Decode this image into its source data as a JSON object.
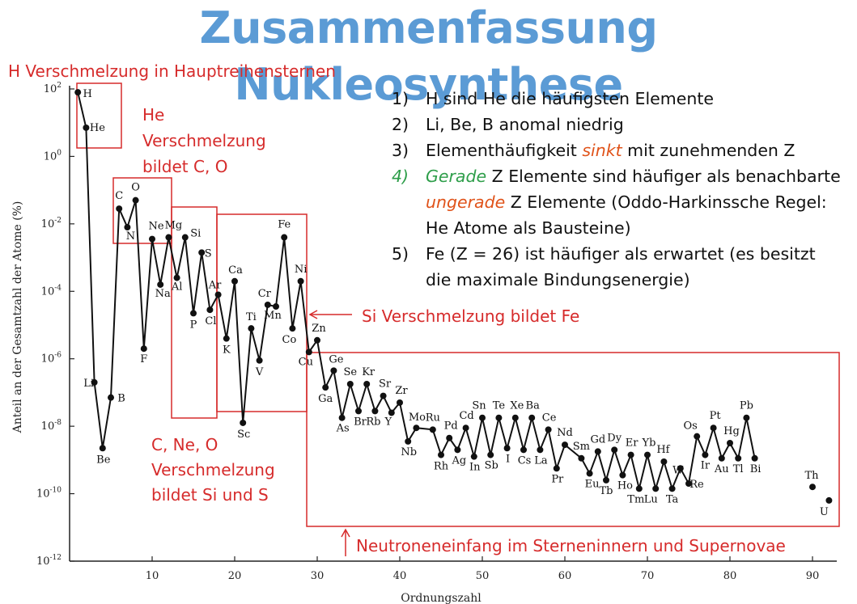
{
  "slide": {
    "title": "Zusammenfassung Nukleosynthese"
  },
  "notes": [
    {
      "num": "1)",
      "parts": [
        {
          "text": "H sind He die häufigsten Elemente"
        }
      ]
    },
    {
      "num": "2)",
      "parts": [
        {
          "text": "Li, Be, B anomal niedrig"
        }
      ]
    },
    {
      "num": "3)",
      "parts": [
        {
          "text": "Elementhäufigkeit "
        },
        {
          "text": "sinkt",
          "style": "orange"
        },
        {
          "text": " mit zunehmenden Z"
        }
      ]
    },
    {
      "num": "4)",
      "num_style": "green",
      "parts": [
        {
          "text": "Gerade",
          "style": "green"
        },
        {
          "text": " Z Elemente sind häufiger als benachbarte "
        },
        {
          "text": "ungerade",
          "style": "orange"
        },
        {
          "text": " Z Elemente (Oddo-Harkinssche Regel: He Atome als Bausteine)"
        }
      ]
    },
    {
      "num": "5)",
      "parts": [
        {
          "text": "Fe (Z = 26) ist häufiger als erwartet (es besitzt die maximale Bindungsenergie)"
        }
      ]
    }
  ],
  "annotations": {
    "h_fusion": "H Verschmelzung in Hauptreihensternen",
    "he_fusion": [
      "He",
      "Verschmelzung",
      "bildet C, O"
    ],
    "cneo_fusion": [
      "C, Ne, O",
      "Verschmelzung",
      "bildet Si und S"
    ],
    "si_fusion": "Si Verschmelzung bildet Fe",
    "neutron_capture": "Neutroneneinfang im Sterneninnern und Supernovae"
  },
  "colors": {
    "title": "#5b9bd5",
    "annotation": "#d62b2b",
    "highlight_green": "#2e9e4a",
    "highlight_orange": "#e0531a",
    "data": "#111111"
  },
  "chart_data": {
    "type": "line",
    "xlabel": "Ordnungszahl",
    "ylabel": "Anteil an der Gesamtzahl der Atome (%)",
    "xlim": [
      0,
      93
    ],
    "ylim_log10": [
      -12,
      2
    ],
    "y_scale": "log",
    "xticks": [
      10,
      20,
      30,
      40,
      50,
      60,
      70,
      80,
      90
    ],
    "yticks": [
      {
        "mant": "10",
        "exp": "2"
      },
      {
        "mant": "10",
        "exp": "0"
      },
      {
        "mant": "10",
        "exp": "-2"
      },
      {
        "mant": "10",
        "exp": "-4"
      },
      {
        "mant": "10",
        "exp": "-6"
      },
      {
        "mant": "10",
        "exp": "-8"
      },
      {
        "mant": "10",
        "exp": "-10"
      },
      {
        "mant": "10",
        "exp": "-12"
      }
    ],
    "grid": false,
    "series": [
      {
        "points": [
          {
            "z": 1,
            "log10": 1.9,
            "sym": "H"
          },
          {
            "z": 2,
            "log10": 0.85,
            "sym": "He"
          },
          {
            "z": 3,
            "log10": -6.7,
            "sym": "Li"
          },
          {
            "z": 4,
            "log10": -8.65,
            "sym": "Be"
          },
          {
            "z": 5,
            "log10": -7.15,
            "sym": "B"
          },
          {
            "z": 6,
            "log10": -1.55,
            "sym": "C"
          },
          {
            "z": 7,
            "log10": -2.1,
            "sym": "N"
          },
          {
            "z": 8,
            "log10": -1.3,
            "sym": "O"
          },
          {
            "z": 9,
            "log10": -5.7,
            "sym": "F"
          },
          {
            "z": 10,
            "log10": -2.45,
            "sym": "Ne"
          },
          {
            "z": 11,
            "log10": -3.8,
            "sym": "Na"
          },
          {
            "z": 12,
            "log10": -2.4,
            "sym": "Mg"
          },
          {
            "z": 13,
            "log10": -3.6,
            "sym": "Al"
          },
          {
            "z": 14,
            "log10": -2.4,
            "sym": "Si"
          },
          {
            "z": 15,
            "log10": -4.65,
            "sym": "P"
          },
          {
            "z": 16,
            "log10": -2.85,
            "sym": "S"
          },
          {
            "z": 17,
            "log10": -4.55,
            "sym": "Cl"
          },
          {
            "z": 18,
            "log10": -4.1,
            "sym": "Ar"
          },
          {
            "z": 19,
            "log10": -5.4,
            "sym": "K"
          },
          {
            "z": 20,
            "log10": -3.7,
            "sym": "Ca"
          },
          {
            "z": 21,
            "log10": -7.9,
            "sym": "Sc"
          },
          {
            "z": 22,
            "log10": -5.1,
            "sym": "Ti"
          },
          {
            "z": 23,
            "log10": -6.05,
            "sym": "V"
          },
          {
            "z": 24,
            "log10": -4.4,
            "sym": "Cr"
          },
          {
            "z": 25,
            "log10": -4.45,
            "sym": "Mn"
          },
          {
            "z": 26,
            "log10": -2.4,
            "sym": "Fe"
          },
          {
            "z": 27,
            "log10": -5.1,
            "sym": "Co"
          },
          {
            "z": 28,
            "log10": -3.7,
            "sym": "Ni"
          },
          {
            "z": 29,
            "log10": -5.8,
            "sym": "Cu"
          },
          {
            "z": 30,
            "log10": -5.45,
            "sym": "Zn"
          },
          {
            "z": 31,
            "log10": -6.85,
            "sym": "Ga"
          },
          {
            "z": 32,
            "log10": -6.35,
            "sym": "Ge"
          },
          {
            "z": 33,
            "log10": -7.75,
            "sym": "As"
          },
          {
            "z": 34,
            "log10": -6.75,
            "sym": "Se"
          },
          {
            "z": 35,
            "log10": -7.55,
            "sym": "Br"
          },
          {
            "z": 36,
            "log10": -6.75,
            "sym": "Kr"
          },
          {
            "z": 37,
            "log10": -7.55,
            "sym": "Rb"
          },
          {
            "z": 38,
            "log10": -7.1,
            "sym": "Sr"
          },
          {
            "z": 39,
            "log10": -7.6,
            "sym": "Y"
          },
          {
            "z": 40,
            "log10": -7.3,
            "sym": "Zr"
          },
          {
            "z": 41,
            "log10": -8.45,
            "sym": "Nb"
          },
          {
            "z": 42,
            "log10": -8.05,
            "sym": "Mo"
          },
          {
            "z": 44,
            "log10": -8.1,
            "sym": "Ru"
          },
          {
            "z": 45,
            "log10": -8.85,
            "sym": "Rh"
          },
          {
            "z": 46,
            "log10": -8.35,
            "sym": "Pd"
          },
          {
            "z": 47,
            "log10": -8.7,
            "sym": "Ag"
          },
          {
            "z": 48,
            "log10": -8.05,
            "sym": "Cd"
          },
          {
            "z": 49,
            "log10": -8.9,
            "sym": "In"
          },
          {
            "z": 50,
            "log10": -7.75,
            "sym": "Sn"
          },
          {
            "z": 51,
            "log10": -8.85,
            "sym": "Sb"
          },
          {
            "z": 52,
            "log10": -7.75,
            "sym": "Te"
          },
          {
            "z": 53,
            "log10": -8.65,
            "sym": "I"
          },
          {
            "z": 54,
            "log10": -7.75,
            "sym": "Xe"
          },
          {
            "z": 55,
            "log10": -8.7,
            "sym": "Cs"
          },
          {
            "z": 56,
            "log10": -7.75,
            "sym": "Ba"
          },
          {
            "z": 57,
            "log10": -8.7,
            "sym": "La"
          },
          {
            "z": 58,
            "log10": -8.1,
            "sym": "Ce"
          },
          {
            "z": 59,
            "log10": -9.25,
            "sym": "Pr"
          },
          {
            "z": 60,
            "log10": -8.55,
            "sym": "Nd"
          },
          {
            "z": 62,
            "log10": -8.95,
            "sym": "Sm"
          },
          {
            "z": 63,
            "log10": -9.4,
            "sym": "Eu"
          },
          {
            "z": 64,
            "log10": -8.75,
            "sym": "Gd"
          },
          {
            "z": 65,
            "log10": -9.6,
            "sym": "Tb"
          },
          {
            "z": 66,
            "log10": -8.7,
            "sym": "Dy"
          },
          {
            "z": 67,
            "log10": -9.45,
            "sym": "Ho"
          },
          {
            "z": 68,
            "log10": -8.85,
            "sym": "Er"
          },
          {
            "z": 69,
            "log10": -9.85,
            "sym": "Tm"
          },
          {
            "z": 70,
            "log10": -8.85,
            "sym": "Yb"
          },
          {
            "z": 71,
            "log10": -9.85,
            "sym": "Lu"
          },
          {
            "z": 72,
            "log10": -9.05,
            "sym": "Hf"
          },
          {
            "z": 73,
            "log10": -9.85,
            "sym": "Ta"
          },
          {
            "z": 74,
            "log10": -9.25,
            "sym": "W"
          },
          {
            "z": 75,
            "log10": -9.7,
            "sym": "Re"
          },
          {
            "z": 76,
            "log10": -8.3,
            "sym": "Os"
          },
          {
            "z": 77,
            "log10": -8.85,
            "sym": "Ir"
          },
          {
            "z": 78,
            "log10": -8.05,
            "sym": "Pt"
          },
          {
            "z": 79,
            "log10": -8.95,
            "sym": "Au"
          },
          {
            "z": 80,
            "log10": -8.5,
            "sym": "Hg"
          },
          {
            "z": 81,
            "log10": -8.95,
            "sym": "Tl"
          },
          {
            "z": 82,
            "log10": -7.75,
            "sym": "Pb"
          },
          {
            "z": 83,
            "log10": -8.95,
            "sym": "Bi"
          }
        ]
      },
      {
        "points": [
          {
            "z": 90,
            "log10": -9.8,
            "sym": "Th"
          },
          {
            "z": 92,
            "log10": -10.2,
            "sym": "U"
          }
        ]
      }
    ]
  }
}
